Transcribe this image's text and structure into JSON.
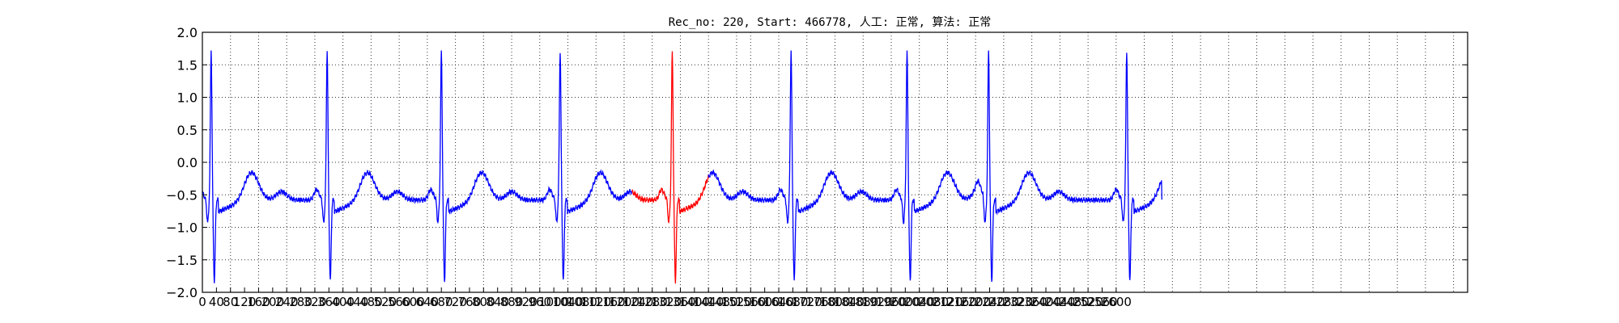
{
  "chart_data": {
    "type": "line",
    "title": "Rec_no: 220, Start: 466778, 人工: 正常, 算法: 正常",
    "xlabel": "",
    "ylabel": "",
    "xlim": [
      0,
      3600
    ],
    "ylim": [
      -2.0,
      2.0
    ],
    "grid": true,
    "y_ticks": [
      2.0,
      1.5,
      1.0,
      0.5,
      0.0,
      -0.5,
      -1.0,
      -1.5,
      -2.0
    ],
    "y_tick_labels": [
      "2.0",
      "1.5",
      "1.0",
      "0.5",
      "0.0",
      "−0.5",
      "−1.0",
      "−1.5",
      "−2.0"
    ],
    "x_ticks": [
      0,
      40,
      80,
      120,
      160,
      200,
      240,
      280,
      320,
      360,
      400,
      440,
      480,
      520,
      560,
      600,
      640,
      680,
      720,
      760,
      800,
      840,
      880,
      920,
      960,
      1000,
      1040,
      1080,
      1120,
      1160,
      1200,
      1240,
      1280,
      1320,
      1360,
      1400,
      1440,
      1480,
      1520,
      1560,
      1600,
      1640,
      1680,
      1720,
      1760,
      1800,
      1840,
      1880,
      1920,
      1960,
      2000,
      2040,
      2080,
      2120,
      2160,
      2200,
      2240,
      2280,
      2320,
      2360,
      2400,
      2440,
      2480,
      2520,
      2560,
      2600
    ],
    "x_tick_labels": [
      "0",
      "40",
      "80",
      "120",
      "160",
      "200",
      "240",
      "280",
      "320",
      "360",
      "400",
      "440",
      "480",
      "520",
      "560",
      "600",
      "640",
      "680",
      "720",
      "760",
      "800",
      "840",
      "880",
      "920",
      "960",
      "1000",
      "1040",
      "1080",
      "1120",
      "1160",
      "1200",
      "1240",
      "1280",
      "1320",
      "1360",
      "1400",
      "1440",
      "1480",
      "1520",
      "1560",
      "1600",
      "1640",
      "1680",
      "1720",
      "1760",
      "1800",
      "1840",
      "1880",
      "1920",
      "1960",
      "2000",
      "2040",
      "2080",
      "2120",
      "2160",
      "2200",
      "2240",
      "2280",
      "2320",
      "2360",
      "2400",
      "2440",
      "2480",
      "2520",
      "2560",
      "2600"
    ],
    "x_grid": [
      80,
      160,
      240,
      320,
      400,
      480,
      560,
      640,
      720,
      800,
      880,
      960,
      1040,
      1120,
      1200,
      1280,
      1360,
      1440,
      1520,
      1560,
      1640,
      1720,
      1800,
      1880,
      1960,
      2040,
      2120,
      2200,
      2280,
      2360,
      2440,
      2520,
      2600,
      2680,
      2760,
      2840,
      2920,
      3000,
      3080,
      3160,
      3240,
      3320,
      3400,
      3480,
      3560
    ],
    "beats": [
      {
        "r": 25,
        "start": 0,
        "end": 340,
        "highlight": false
      },
      {
        "r": 355,
        "start": 340,
        "end": 665,
        "highlight": false
      },
      {
        "r": 680,
        "start": 665,
        "end": 1000,
        "highlight": false
      },
      {
        "r": 1018,
        "start": 1000,
        "end": 1322,
        "highlight": false
      },
      {
        "r": 1337,
        "start": 1322,
        "end": 1660,
        "highlight": true
      },
      {
        "r": 1675,
        "start": 1660,
        "end": 1990,
        "highlight": false
      },
      {
        "r": 2005,
        "start": 1990,
        "end": 2222,
        "highlight": false
      },
      {
        "r": 2237,
        "start": 2222,
        "end": 2615,
        "highlight": false
      },
      {
        "r": 2630,
        "start": 2615,
        "end": 2730,
        "highlight": false
      }
    ],
    "series": [
      {
        "color": "#0000ff"
      },
      {
        "color": "#ff0000"
      }
    ]
  }
}
